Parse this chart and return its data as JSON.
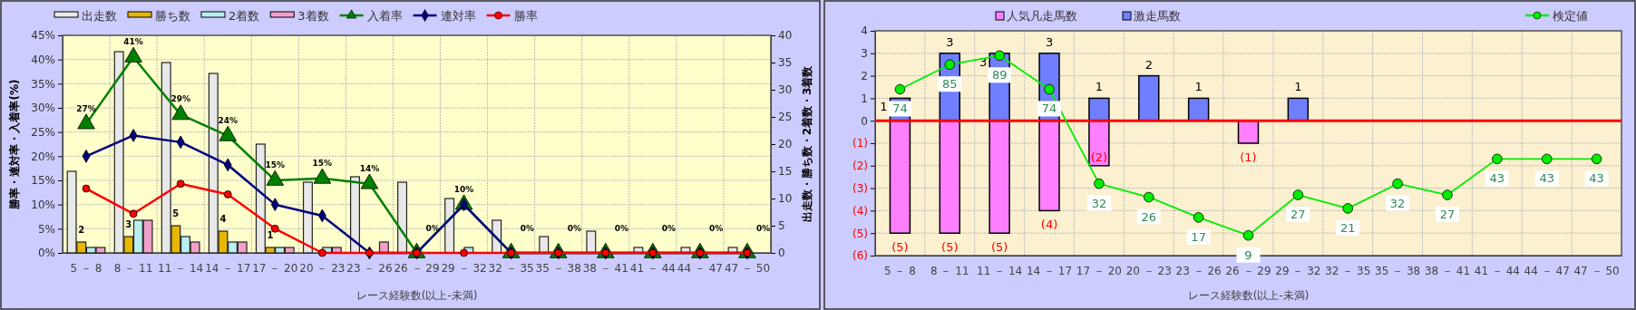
{
  "chart_data": [
    {
      "type": "bar",
      "xlabel": "レース経験数(以上-未満)",
      "ylabel": "勝率・連対率・入着率(%)",
      "y2label": "出走数・勝ち数・2着数・3着数",
      "categories": [
        "5 － 8",
        "8 － 11",
        "11 － 14",
        "14 － 17",
        "17 － 20",
        "20 － 23",
        "23 － 26",
        "26 － 29",
        "29 － 32",
        "32 － 35",
        "35 － 38",
        "38 － 41",
        "41 － 44",
        "44 － 47",
        "47 － 50"
      ],
      "series": [
        {
          "name": "出走数",
          "type": "bar",
          "axis": "y2",
          "color": "#e8e8e8",
          "values": [
            15,
            37,
            35,
            33,
            20,
            13,
            14,
            13,
            10,
            6,
            3,
            4,
            1,
            1,
            1
          ]
        },
        {
          "name": "勝ち数",
          "type": "bar",
          "axis": "y2",
          "color": "#e6b800",
          "values": [
            2,
            3,
            5,
            4,
            1,
            0,
            0,
            0,
            0,
            0,
            0,
            0,
            0,
            0,
            0
          ],
          "value_labels": [
            "2",
            "3",
            "5",
            "4",
            "1",
            null,
            null,
            null,
            null,
            null,
            null,
            null,
            null,
            null,
            null
          ]
        },
        {
          "name": "2着数",
          "type": "bar",
          "axis": "y2",
          "color": "#b8f0f0",
          "values": [
            1,
            6,
            3,
            2,
            1,
            1,
            0,
            0,
            1,
            0,
            0,
            0,
            0,
            0,
            0
          ]
        },
        {
          "name": "3着数",
          "type": "bar",
          "axis": "y2",
          "color": "#f0a0c8",
          "values": [
            1,
            6,
            2,
            2,
            1,
            1,
            2,
            0,
            0,
            0,
            0,
            0,
            0,
            0,
            0
          ]
        },
        {
          "name": "入着率",
          "type": "line",
          "marker": "triangle",
          "color": "#008000",
          "values": [
            26.7,
            40.5,
            28.6,
            24.2,
            15,
            15.4,
            14.3,
            0,
            10,
            0,
            0,
            0,
            0,
            0,
            0
          ],
          "value_labels": [
            "27%",
            "41%",
            "29%",
            "24%",
            "15%",
            "15%",
            "14%",
            "0%",
            "10%",
            "0%",
            "0%",
            "0%",
            "0%",
            "0%",
            "0%"
          ]
        },
        {
          "name": "連対率",
          "type": "line",
          "marker": "diamond",
          "color": "#000080",
          "values": [
            20,
            24.3,
            22.9,
            18.2,
            10,
            7.7,
            0,
            0,
            10,
            0,
            0,
            0,
            0,
            0,
            0
          ]
        },
        {
          "name": "勝率",
          "type": "line",
          "marker": "circle",
          "color": "#ff0000",
          "values": [
            13.3,
            8.1,
            14.3,
            12.1,
            5,
            0,
            0,
            0,
            0,
            0,
            0,
            0,
            0,
            0,
            0
          ]
        }
      ],
      "ylim": [
        0,
        45
      ],
      "yticks": [
        {
          "value": 0,
          "label": "0%"
        },
        {
          "value": 5,
          "label": "5%"
        },
        {
          "value": 10,
          "label": "10%"
        },
        {
          "value": 15,
          "label": "15%"
        },
        {
          "value": 20,
          "label": "20%"
        },
        {
          "value": 25,
          "label": "25%"
        },
        {
          "value": 30,
          "label": "30%"
        },
        {
          "value": 35,
          "label": "35%"
        },
        {
          "value": 40,
          "label": "40%"
        },
        {
          "value": 45,
          "label": "45%"
        }
      ],
      "y2lim": [
        0,
        40
      ],
      "y2ticks": [
        0,
        5,
        10,
        15,
        20,
        25,
        30,
        35,
        40
      ],
      "grid": true,
      "legend": "top"
    },
    {
      "type": "bar",
      "xlabel": "レース経験数(以上-未満)",
      "stacked": true,
      "tick_labels": "xy",
      "categories": [
        "5 － 8",
        "8 － 11",
        "11 － 14",
        "14 － 17",
        "17 － 20",
        "20 － 23",
        "23 － 26",
        "26 － 29",
        "29 － 32",
        "32 － 35",
        "35 － 38",
        "38 － 41",
        "41 － 44",
        "44 － 47",
        "47 － 50"
      ],
      "series": [
        {
          "name": "人気凡走馬数",
          "type": "bar",
          "color": "#ff80ff",
          "values": [
            -5,
            -5,
            -5,
            -4,
            -2,
            0,
            0,
            -1,
            0,
            0,
            0,
            0,
            0,
            0,
            0
          ],
          "value_labels": [
            "(5)",
            "(5)",
            "(5)",
            "(4)",
            "(2)",
            null,
            null,
            "(1)",
            null,
            null,
            null,
            null,
            null,
            null,
            null
          ]
        },
        {
          "name": "激走馬数",
          "type": "bar",
          "color": "#6f7fff",
          "values": [
            1,
            3,
            3,
            3,
            1,
            2,
            1,
            0,
            1,
            0,
            0,
            0,
            0,
            0,
            0
          ],
          "value_labels": [
            "1",
            "3",
            "3",
            "3",
            "1",
            "2",
            "1",
            null,
            "1",
            null,
            null,
            null,
            null,
            null,
            null
          ]
        },
        {
          "name": "検定値",
          "type": "line",
          "axis": "y2",
          "marker": "circle",
          "color": "#00ee00",
          "values": [
            74,
            85,
            89,
            74,
            32,
            26,
            17,
            9,
            27,
            21,
            32,
            27,
            43,
            43,
            43
          ],
          "value_labels": [
            "74",
            "85",
            "89",
            "74",
            "32",
            "26",
            "17",
            "9",
            "27",
            "21",
            "32",
            "27",
            "43",
            "43",
            "43"
          ]
        }
      ],
      "ylim": [
        -6,
        4
      ],
      "yticks": [
        {
          "value": 4,
          "label": "4"
        },
        {
          "value": 3,
          "label": "3"
        },
        {
          "value": 2,
          "label": "2"
        },
        {
          "value": 1,
          "label": "1"
        },
        {
          "value": 0,
          "label": "0"
        },
        {
          "value": -1,
          "label": "(1)"
        },
        {
          "value": -2,
          "label": "(2)"
        },
        {
          "value": -3,
          "label": "(3)"
        },
        {
          "value": -4,
          "label": "(4)"
        },
        {
          "value": -5,
          "label": "(5)"
        },
        {
          "value": -6,
          "label": "(6)"
        }
      ],
      "y2lim": [
        0,
        100
      ],
      "grid": true,
      "legend": "top",
      "ref_lines": [
        {
          "axis": "y",
          "value": 0,
          "color": "#ff0000"
        }
      ]
    }
  ]
}
